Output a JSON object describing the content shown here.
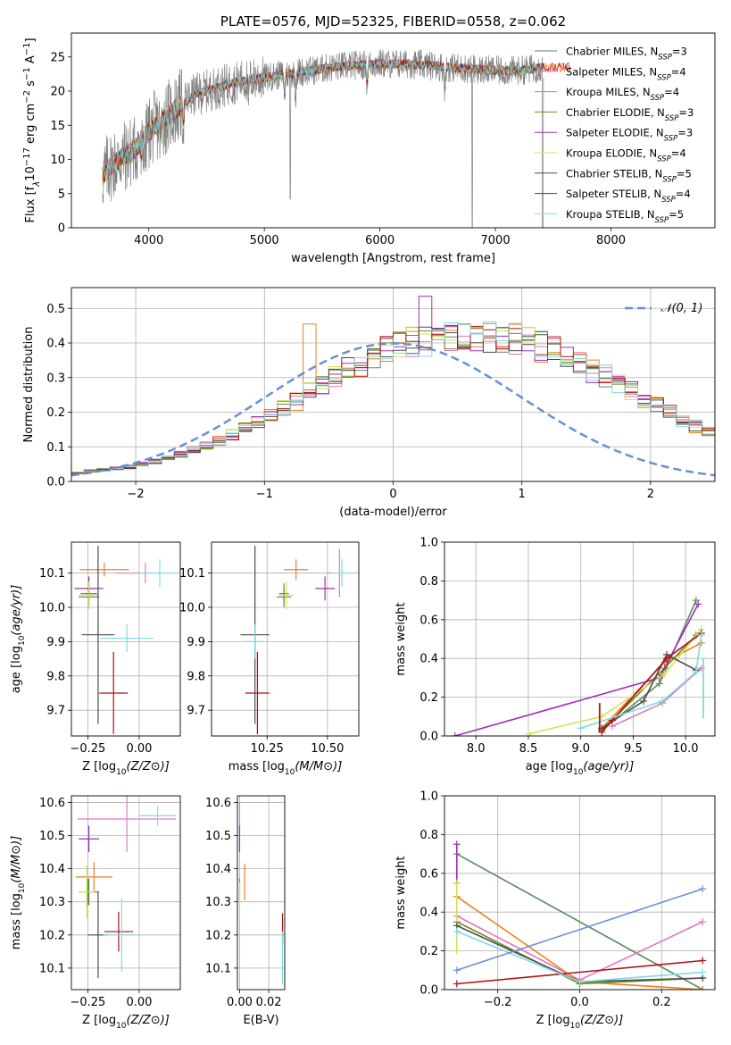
{
  "chart_data": [
    {
      "id": "spectrum",
      "type": "line",
      "title": "PLATE=0576, MJD=52325, FIBERID=0558, z=0.062",
      "xlabel": "wavelength [Angstrom, rest frame]",
      "ylabel": "Flux [f_λ 10^-17 erg cm^-2 s^-1 A^-1]",
      "xlim": [
        3330,
        8900
      ],
      "ylim": [
        0,
        28.5
      ],
      "xticks": [
        4000,
        5000,
        6000,
        7000,
        8000
      ],
      "yticks": [
        0,
        5,
        10,
        15,
        20,
        25
      ],
      "grid": false,
      "legend_position": "right",
      "data_range": [
        3600,
        7420
      ],
      "shape": [
        [
          3600,
          7.5
        ],
        [
          3660,
          9
        ],
        [
          3750,
          10
        ],
        [
          3850,
          11
        ],
        [
          3930,
          12.5
        ],
        [
          4000,
          14
        ],
        [
          4100,
          15.5
        ],
        [
          4250,
          17.5
        ],
        [
          4400,
          19.5
        ],
        [
          4600,
          20.5
        ],
        [
          4800,
          21.5
        ],
        [
          5000,
          22
        ],
        [
          5200,
          22.5
        ],
        [
          5400,
          23
        ],
        [
          5600,
          23.5
        ],
        [
          5800,
          23.8
        ],
        [
          6000,
          24
        ],
        [
          6200,
          24
        ],
        [
          6400,
          23.8
        ],
        [
          6600,
          23.5
        ],
        [
          6800,
          23.2
        ],
        [
          7000,
          23
        ],
        [
          7200,
          23
        ],
        [
          7420,
          23.5
        ]
      ],
      "absorption_lines": [
        3934,
        3968,
        4102,
        4300,
        4861,
        5175,
        5270,
        5890,
        6563
      ],
      "deep_dips": [
        [
          5225,
          4.2
        ],
        [
          6800,
          0
        ],
        [
          7410,
          0
        ]
      ],
      "extended_series_end": 7650,
      "series": [
        {
          "name": "Chabrier MILES, N_SSP=3",
          "color": "#5a8a64"
        },
        {
          "name": "Salpeter MILES, N_SSP=4",
          "color": "#e377c2"
        },
        {
          "name": "Kroupa MILES, N_SSP=4",
          "color": "#ef7f1e"
        },
        {
          "name": "Chabrier ELODIE, N_SSP=3",
          "color": "#6b8e23"
        },
        {
          "name": "Salpeter ELODIE, N_SSP=3",
          "color": "#9b30b8"
        },
        {
          "name": "Kroupa ELODIE, N_SSP=4",
          "color": "#d4e157"
        },
        {
          "name": "Chabrier STELIB, N_SSP=5",
          "color": "#4d4d4d"
        },
        {
          "name": "Salpeter STELIB, N_SSP=4",
          "color": "#b30f12"
        },
        {
          "name": "Kroupa STELIB, N_SSP=5",
          "color": "#7fdbe0"
        }
      ],
      "legend_labels": [
        {
          "pre": "Chabrier MILES, N",
          "sub": "SSP",
          "post": "=3"
        },
        {
          "pre": "Salpeter MILES, N",
          "sub": "SSP",
          "post": "=4"
        },
        {
          "pre": "Kroupa MILES, N",
          "sub": "SSP",
          "post": "=4"
        },
        {
          "pre": "Chabrier ELODIE, N",
          "sub": "SSP",
          "post": "=3"
        },
        {
          "pre": "Salpeter ELODIE, N",
          "sub": "SSP",
          "post": "=3"
        },
        {
          "pre": "Kroupa ELODIE, N",
          "sub": "SSP",
          "post": "=4"
        },
        {
          "pre": "Chabrier STELIB, N",
          "sub": "SSP",
          "post": "=5"
        },
        {
          "pre": "Salpeter STELIB, N",
          "sub": "SSP",
          "post": "=4"
        },
        {
          "pre": "Kroupa STELIB, N",
          "sub": "SSP",
          "post": "=5"
        }
      ],
      "data_color": "#808080"
    },
    {
      "id": "residuals",
      "type": "line",
      "xlabel": "(data-model)/error",
      "ylabel": "Normed distribution",
      "xlim": [
        -2.5,
        2.5
      ],
      "ylim": [
        0,
        0.56
      ],
      "xticks": [
        -2,
        -1,
        0,
        1,
        2
      ],
      "yticks": [
        0.0,
        0.1,
        0.2,
        0.3,
        0.4,
        0.5
      ],
      "grid": true,
      "legend": {
        "label": "𝒩(0, 1)",
        "color": "#6a8fd8",
        "style": "dashed",
        "position": "top-right"
      },
      "bin_width": 0.1,
      "bin_start": -2.5,
      "base_profile": [
        0.025,
        0.03,
        0.033,
        0.037,
        0.042,
        0.05,
        0.058,
        0.066,
        0.078,
        0.09,
        0.102,
        0.118,
        0.134,
        0.152,
        0.172,
        0.19,
        0.212,
        0.232,
        0.258,
        0.28,
        0.3,
        0.32,
        0.342,
        0.36,
        0.375,
        0.388,
        0.4,
        0.408,
        0.413,
        0.416,
        0.42,
        0.42,
        0.418,
        0.415,
        0.41,
        0.402,
        0.388,
        0.375,
        0.36,
        0.34,
        0.322,
        0.302,
        0.28,
        0.26,
        0.238,
        0.218,
        0.198,
        0.178,
        0.158,
        0.14,
        0.122,
        0.106,
        0.092,
        0.078,
        0.066,
        0.056,
        0.047,
        0.04,
        0.034,
        0.029,
        0.025
      ],
      "series_scatter": [
        0,
        1,
        2,
        3,
        4,
        5,
        6,
        7,
        8
      ]
    },
    {
      "id": "age_vs_Z",
      "type": "scatter",
      "xlabel": "Z [log10(Z/Z⊙)]",
      "ylabel": "age [log10(age/yr)]",
      "xlim": [
        -0.33,
        0.2
      ],
      "ylim": [
        9.625,
        10.19
      ],
      "xticks": [
        -0.25,
        0.0
      ],
      "xtick_labels": [
        "−0.25",
        "0.00"
      ],
      "yticks": [
        9.7,
        9.8,
        9.9,
        10.0,
        10.1
      ],
      "grid": true,
      "points": [
        {
          "s": 0,
          "x": -0.245,
          "xerr": 0.05,
          "y": 10.03,
          "yerr": 0.03
        },
        {
          "s": 1,
          "x": 0.03,
          "xerr": 0.14,
          "y": 10.1,
          "yerr": 0.03
        },
        {
          "s": 2,
          "x": -0.17,
          "xerr": 0.12,
          "y": 10.11,
          "yerr": 0.02
        },
        {
          "s": 3,
          "x": -0.245,
          "xerr": 0.04,
          "y": 10.04,
          "yerr": 0.03
        },
        {
          "s": 4,
          "x": -0.245,
          "xerr": 0.07,
          "y": 10.055,
          "yerr": 0.035
        },
        {
          "s": 5,
          "x": -0.245,
          "xerr": 0.05,
          "y": 10.035,
          "yerr": 0.04
        },
        {
          "s": 6,
          "x": -0.2,
          "xerr": 0.08,
          "y": 9.92,
          "yerr": 0.26
        },
        {
          "s": 7,
          "x": -0.125,
          "xerr": 0.07,
          "y": 9.75,
          "yerr": 0.12
        },
        {
          "s": 8,
          "x": -0.06,
          "xerr": 0.13,
          "y": 9.91,
          "yerr": 0.04
        },
        {
          "s": 8,
          "x": 0.1,
          "xerr": 0.1,
          "y": 10.1,
          "yerr": 0.04
        }
      ]
    },
    {
      "id": "age_vs_mass",
      "type": "scatter",
      "xlabel": "mass [log10(M/M⊙)]",
      "ylabel": "",
      "xlim": [
        10.02,
        10.63
      ],
      "ylim": [
        9.625,
        10.19
      ],
      "xticks": [
        10.25,
        10.5
      ],
      "xtick_labels": [
        "10.25",
        "10.50"
      ],
      "yticks": [
        9.7,
        9.8,
        9.9,
        10.0,
        10.1
      ],
      "grid": true,
      "points": [
        {
          "s": 0,
          "x": 10.32,
          "xerr": 0.03,
          "y": 10.03,
          "yerr": 0.03
        },
        {
          "s": 1,
          "x": 10.55,
          "xerr": 0.05,
          "y": 10.1,
          "yerr": 0.07
        },
        {
          "s": 2,
          "x": 10.37,
          "xerr": 0.05,
          "y": 10.11,
          "yerr": 0.03
        },
        {
          "s": 3,
          "x": 10.32,
          "xerr": 0.02,
          "y": 10.04,
          "yerr": 0.03
        },
        {
          "s": 4,
          "x": 10.49,
          "xerr": 0.04,
          "y": 10.055,
          "yerr": 0.035
        },
        {
          "s": 5,
          "x": 10.33,
          "xerr": 0.03,
          "y": 10.035,
          "yerr": 0.04
        },
        {
          "s": 6,
          "x": 10.2,
          "xerr": 0.06,
          "y": 9.92,
          "yerr": 0.26
        },
        {
          "s": 7,
          "x": 10.21,
          "xerr": 0.05,
          "y": 9.75,
          "yerr": 0.12
        },
        {
          "s": 8,
          "x": 10.2,
          "xerr": 0.04,
          "y": 9.9,
          "yerr": 0.05
        },
        {
          "s": 8,
          "x": 10.56,
          "xerr": 0.04,
          "y": 10.1,
          "yerr": 0.04
        }
      ]
    },
    {
      "id": "weight_vs_age",
      "type": "line",
      "xlabel": "age [log10(age/yr)]",
      "ylabel": "mass weight",
      "xlim": [
        7.7,
        10.28
      ],
      "ylim": [
        0,
        1
      ],
      "xticks": [
        8.0,
        8.5,
        9.0,
        9.5,
        10.0
      ],
      "xtick_labels": [
        "8.0",
        "8.5",
        "9.0",
        "9.5",
        "10.0"
      ],
      "yticks": [
        0.0,
        0.2,
        0.4,
        0.6,
        0.8,
        1.0
      ],
      "grid": true,
      "series_points": [
        {
          "s": 0,
          "x": [
            9.2,
            9.75,
            10.1
          ],
          "y": [
            0.03,
            0.27,
            0.7
          ]
        },
        {
          "s": 1,
          "x": [
            9.3,
            9.78,
            10.15
          ],
          "y": [
            0.05,
            0.17,
            0.35
          ]
        },
        {
          "s": 2,
          "x": [
            9.2,
            9.8,
            10.15
          ],
          "y": [
            0.04,
            0.38,
            0.48
          ]
        },
        {
          "s": 3,
          "x": [
            9.2,
            9.8,
            10.1
          ],
          "y": [
            0.03,
            0.35,
            0.52
          ]
        },
        {
          "s": 4,
          "x": [
            7.8,
            9.75,
            10.12
          ],
          "y": [
            0.0,
            0.3,
            0.68
          ]
        },
        {
          "s": 5,
          "x": [
            8.5,
            9.2,
            9.8,
            10.15
          ],
          "y": [
            0.01,
            0.1,
            0.32,
            0.55
          ]
        },
        {
          "s": 6,
          "x": [
            9.2,
            9.6,
            9.82,
            10.1
          ],
          "y": [
            0.04,
            0.18,
            0.42,
            0.34
          ]
        },
        {
          "s": 7,
          "x": [
            9.2,
            9.3,
            9.82,
            10.15
          ],
          "y": [
            0.02,
            0.08,
            0.4,
            0.53
          ]
        },
        {
          "s": 8,
          "x": [
            9.0,
            9.78,
            10.1,
            10.15
          ],
          "y": [
            0.04,
            0.18,
            0.33,
            0.52
          ]
        }
      ],
      "error_bars": [
        {
          "s": 8,
          "x": 10.17,
          "y0": 0.09,
          "y1": 0.4
        },
        {
          "s": 7,
          "x": 9.18,
          "y0": 0.02,
          "y1": 0.17
        },
        {
          "s": 5,
          "x": 8.52,
          "y0": 0.0,
          "y1": 0.02
        }
      ]
    },
    {
      "id": "mass_vs_Z",
      "type": "scatter",
      "xlabel": "Z [log10(Z/Z⊙)]",
      "ylabel": "mass [log10(M/M⊙)]",
      "xlim": [
        -0.33,
        0.2
      ],
      "ylim": [
        10.035,
        10.62
      ],
      "xticks": [
        -0.25,
        0.0
      ],
      "xtick_labels": [
        "−0.25",
        "0.00"
      ],
      "yticks": [
        10.1,
        10.2,
        10.3,
        10.4,
        10.5,
        10.6
      ],
      "grid": true,
      "points": [
        {
          "s": 0,
          "x": -0.245,
          "xerr": 0.05,
          "y": 10.33,
          "yerr": 0.04
        },
        {
          "s": 1,
          "x": -0.06,
          "xerr": 0.24,
          "y": 10.55,
          "yerr": 0.1
        },
        {
          "s": 2,
          "x": -0.22,
          "xerr": 0.09,
          "y": 10.375,
          "yerr": 0.045
        },
        {
          "s": 3,
          "x": -0.25,
          "xerr": 0.04,
          "y": 10.33,
          "yerr": 0.04
        },
        {
          "s": 4,
          "x": -0.245,
          "xerr": 0.05,
          "y": 10.49,
          "yerr": 0.04
        },
        {
          "s": 5,
          "x": -0.255,
          "xerr": 0.04,
          "y": 10.33,
          "yerr": 0.08
        },
        {
          "s": 6,
          "x": -0.2,
          "xerr": 0.05,
          "y": 10.2,
          "yerr": 0.13
        },
        {
          "s": 7,
          "x": -0.1,
          "xerr": 0.07,
          "y": 10.21,
          "yerr": 0.06
        },
        {
          "s": 8,
          "x": -0.085,
          "xerr": 0.09,
          "y": 10.2,
          "yerr": 0.11
        },
        {
          "s": 8,
          "x": 0.09,
          "xerr": 0.09,
          "y": 10.56,
          "yerr": 0.03
        }
      ]
    },
    {
      "id": "mass_vs_EBV",
      "type": "scatter",
      "xlabel": "E(B-V)",
      "ylabel": "",
      "xlim": [
        -0.0015,
        0.031
      ],
      "ylim": [
        10.035,
        10.62
      ],
      "xticks": [
        0.0,
        0.02
      ],
      "xtick_labels": [
        "0.00",
        "0.02"
      ],
      "yticks": [
        10.1,
        10.2,
        10.3,
        10.4,
        10.5,
        10.6
      ],
      "grid": true,
      "points": [
        {
          "s": 0,
          "x": 0.0,
          "y": 10.33,
          "yerr": 0.04
        },
        {
          "s": 1,
          "x": 0.0,
          "y": 10.55,
          "yerr": 0.05
        },
        {
          "s": 2,
          "x": 0.0035,
          "y": 10.36,
          "yerr": 0.055
        },
        {
          "s": 4,
          "x": 0.0,
          "y": 10.49,
          "yerr": 0.04
        },
        {
          "s": 5,
          "x": 0.0,
          "y": 10.31,
          "yerr": 0.05
        },
        {
          "s": 7,
          "x": 0.0295,
          "y": 10.22,
          "yerr": 0.045
        },
        {
          "s": 8,
          "x": 0.0295,
          "y": 10.13,
          "yerr": 0.08
        }
      ]
    },
    {
      "id": "weight_vs_Z",
      "type": "line",
      "xlabel": "Z [log10(Z/Z⊙)]",
      "ylabel": "mass weight",
      "xlim": [
        -0.33,
        0.33
      ],
      "ylim": [
        0,
        1
      ],
      "xticks": [
        -0.2,
        0.0,
        0.2
      ],
      "xtick_labels": [
        "−0.2",
        "0.0",
        "0.2"
      ],
      "yticks": [
        0.0,
        0.2,
        0.4,
        0.6,
        0.8,
        1.0
      ],
      "grid": true,
      "series_points": [
        {
          "s": 0,
          "x": [
            -0.3,
            0.3
          ],
          "y": [
            0.7,
            0.0
          ]
        },
        {
          "s": 1,
          "x": [
            -0.3,
            0.0,
            0.3
          ],
          "y": [
            0.38,
            0.05,
            0.35
          ]
        },
        {
          "s": 2,
          "x": [
            -0.3,
            0.0,
            0.3
          ],
          "y": [
            0.48,
            0.04,
            0.0
          ]
        },
        {
          "s": 3,
          "x": [
            -0.3,
            0.0,
            0.3
          ],
          "y": [
            0.35,
            0.03,
            0.06
          ]
        },
        {
          "s": 4,
          "x": [
            -0.3,
            -0.3
          ],
          "y": [
            0.55,
            0.75
          ]
        },
        {
          "s": 5,
          "x": [
            -0.3,
            -0.3
          ],
          "y": [
            0.2,
            0.55
          ]
        },
        {
          "s": 6,
          "x": [
            -0.3,
            0.0,
            0.3
          ],
          "y": [
            0.33,
            0.04,
            0.06
          ]
        },
        {
          "s": 7,
          "x": [
            -0.3,
            0.3
          ],
          "y": [
            0.03,
            0.15
          ]
        },
        {
          "s": 8,
          "x": [
            -0.3,
            0.0,
            0.3
          ],
          "y": [
            0.3,
            0.04,
            0.09
          ]
        },
        {
          "s": 8,
          "x": [
            -0.3,
            0.3
          ],
          "y": [
            0.1,
            0.52
          ],
          "color_override": "#6a8fd8"
        }
      ]
    }
  ]
}
